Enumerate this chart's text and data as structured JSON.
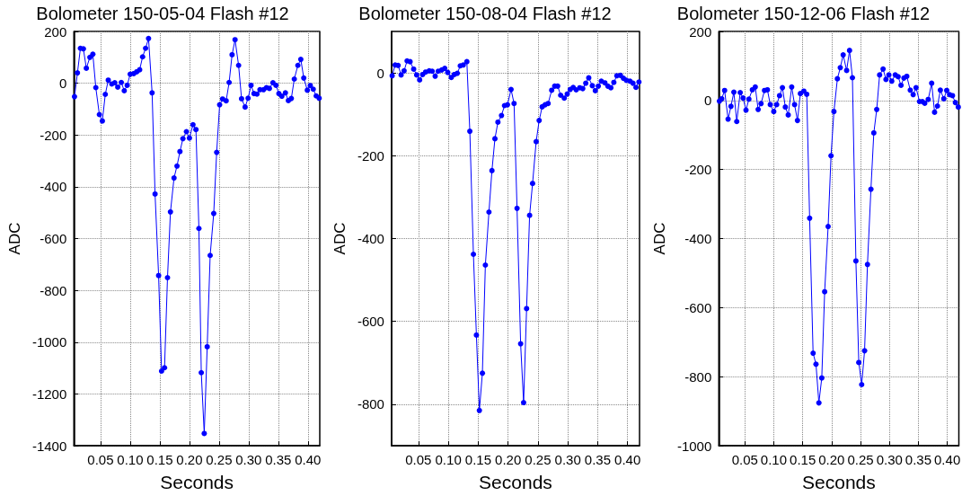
{
  "chart_data": [
    {
      "type": "line",
      "title": "Bolometer 150-05-04 Flash #12",
      "xlabel": "Seconds",
      "ylabel": "ADC",
      "color": "#0000ff",
      "marker": "circle",
      "line_style": "solid",
      "grid": true,
      "x": [
        0.006,
        0.011,
        0.016,
        0.021,
        0.026,
        0.032,
        0.037,
        0.042,
        0.048,
        0.053,
        0.058,
        0.063,
        0.069,
        0.074,
        0.079,
        0.085,
        0.09,
        0.095,
        0.1,
        0.106,
        0.111,
        0.116,
        0.121,
        0.126,
        0.131,
        0.137,
        0.142,
        0.148,
        0.153,
        0.158,
        0.163,
        0.168,
        0.174,
        0.179,
        0.184,
        0.189,
        0.195,
        0.2,
        0.206,
        0.211,
        0.216,
        0.22,
        0.225,
        0.23,
        0.235,
        0.241,
        0.246,
        0.251,
        0.256,
        0.262,
        0.267,
        0.272,
        0.277,
        0.283,
        0.288,
        0.294,
        0.299,
        0.304,
        0.309,
        0.314,
        0.319,
        0.325,
        0.33,
        0.335,
        0.341,
        0.346,
        0.351,
        0.356,
        0.362,
        0.367,
        0.372,
        0.377,
        0.383,
        0.388,
        0.393,
        0.399,
        0.404,
        0.409,
        0.414,
        0.419
      ],
      "values": [
        -52,
        40,
        135,
        133,
        58,
        100,
        112,
        -17,
        -121,
        -146,
        -43,
        12,
        -3,
        2,
        -15,
        3,
        -29,
        -8,
        35,
        37,
        44,
        52,
        102,
        135,
        173,
        -37,
        -428,
        -743,
        -1112,
        -1099,
        -751,
        -497,
        -366,
        -320,
        -264,
        -214,
        -187,
        -212,
        -160,
        -179,
        -561,
        -1118,
        -1353,
        -1018,
        -665,
        -503,
        -267,
        -83,
        -61,
        -68,
        3,
        110,
        168,
        69,
        -60,
        -92,
        -58,
        -8,
        -40,
        -42,
        -25,
        -25,
        -17,
        -20,
        2,
        -8,
        -40,
        -50,
        -37,
        -67,
        -59,
        16,
        69,
        92,
        20,
        -27,
        -9,
        -23,
        -49,
        -58
      ],
      "xlim": [
        0.005,
        0.42
      ],
      "xticks": [
        {
          "value": 0.05,
          "label": "0.05"
        },
        {
          "value": 0.1,
          "label": "0.10"
        },
        {
          "value": 0.15,
          "label": "0.15"
        },
        {
          "value": 0.2,
          "label": "0.20"
        },
        {
          "value": 0.25,
          "label": "0.25"
        },
        {
          "value": 0.3,
          "label": "0.30"
        },
        {
          "value": 0.35,
          "label": "0.35"
        },
        {
          "value": 0.4,
          "label": "0.40"
        }
      ],
      "ylim": [
        -1400,
        200
      ],
      "yticks": [
        -1400,
        -1200,
        -1000,
        -800,
        -600,
        -400,
        -200,
        0,
        200
      ]
    },
    {
      "type": "line",
      "title": "Bolometer 150-08-04 Flash #12",
      "xlabel": "Seconds",
      "ylabel": "ADC",
      "color": "#0000ff",
      "marker": "circle",
      "line_style": "solid",
      "grid": true,
      "x": [
        0.006,
        0.011,
        0.016,
        0.021,
        0.026,
        0.031,
        0.036,
        0.042,
        0.047,
        0.052,
        0.057,
        0.062,
        0.068,
        0.073,
        0.078,
        0.083,
        0.089,
        0.094,
        0.099,
        0.105,
        0.11,
        0.115,
        0.12,
        0.125,
        0.131,
        0.136,
        0.142,
        0.147,
        0.152,
        0.157,
        0.162,
        0.168,
        0.173,
        0.178,
        0.183,
        0.189,
        0.194,
        0.199,
        0.205,
        0.21,
        0.215,
        0.221,
        0.226,
        0.231,
        0.236,
        0.241,
        0.247,
        0.252,
        0.257,
        0.262,
        0.267,
        0.273,
        0.278,
        0.283,
        0.288,
        0.294,
        0.299,
        0.304,
        0.309,
        0.314,
        0.32,
        0.325,
        0.33,
        0.335,
        0.341,
        0.346,
        0.351,
        0.356,
        0.362,
        0.367,
        0.372,
        0.377,
        0.382,
        0.388,
        0.393,
        0.398,
        0.404,
        0.409,
        0.414,
        0.419
      ],
      "values": [
        -7,
        19,
        18,
        -5,
        5,
        29,
        27,
        9,
        -5,
        -17,
        -4,
        2,
        5,
        4,
        -8,
        4,
        7,
        11,
        1,
        -11,
        -4,
        -1,
        17,
        19,
        27,
        -141,
        -438,
        -633,
        -815,
        -725,
        -464,
        -336,
        -236,
        -159,
        -119,
        -103,
        -79,
        -77,
        -40,
        -74,
        -327,
        -654,
        -796,
        -569,
        -344,
        -267,
        -166,
        -115,
        -82,
        -77,
        -74,
        -42,
        -32,
        -32,
        -54,
        -61,
        -51,
        -40,
        -35,
        -41,
        -36,
        -38,
        -25,
        -12,
        -31,
        -43,
        -32,
        -20,
        -24,
        -32,
        -36,
        -23,
        -7,
        -6,
        -13,
        -18,
        -20,
        -25,
        -35,
        -22
      ],
      "xlim": [
        0.005,
        0.42
      ],
      "xticks": [
        {
          "value": 0.05,
          "label": "0.05"
        },
        {
          "value": 0.1,
          "label": "0.10"
        },
        {
          "value": 0.15,
          "label": "0.15"
        },
        {
          "value": 0.2,
          "label": "0.20"
        },
        {
          "value": 0.25,
          "label": "0.25"
        },
        {
          "value": 0.3,
          "label": "0.30"
        },
        {
          "value": 0.35,
          "label": "0.35"
        },
        {
          "value": 0.4,
          "label": "0.40"
        }
      ],
      "ylim": [
        -900,
        100
      ],
      "yticks": [
        -800,
        -600,
        -400,
        -200,
        0
      ]
    },
    {
      "type": "line",
      "title": "Bolometer 150-12-06 Flash #12",
      "xlabel": "Seconds",
      "ylabel": "ADC",
      "color": "#0000ff",
      "marker": "circle",
      "line_style": "solid",
      "grid": true,
      "x": [
        0.006,
        0.01,
        0.015,
        0.021,
        0.026,
        0.031,
        0.036,
        0.042,
        0.047,
        0.052,
        0.057,
        0.063,
        0.068,
        0.073,
        0.078,
        0.084,
        0.089,
        0.094,
        0.1,
        0.105,
        0.11,
        0.115,
        0.12,
        0.125,
        0.131,
        0.136,
        0.141,
        0.146,
        0.152,
        0.157,
        0.162,
        0.168,
        0.173,
        0.178,
        0.183,
        0.188,
        0.194,
        0.199,
        0.204,
        0.21,
        0.215,
        0.22,
        0.226,
        0.231,
        0.236,
        0.242,
        0.247,
        0.252,
        0.257,
        0.262,
        0.268,
        0.273,
        0.278,
        0.283,
        0.289,
        0.294,
        0.299,
        0.304,
        0.31,
        0.315,
        0.32,
        0.325,
        0.33,
        0.336,
        0.341,
        0.346,
        0.352,
        0.357,
        0.361,
        0.367,
        0.373,
        0.378,
        0.383,
        0.388,
        0.394,
        0.399,
        0.404,
        0.409,
        0.414,
        0.419
      ],
      "values": [
        -2,
        5,
        29,
        -54,
        -17,
        24,
        -61,
        23,
        7,
        -28,
        4,
        31,
        39,
        -26,
        -9,
        29,
        31,
        -12,
        -32,
        -12,
        14,
        37,
        -19,
        -42,
        39,
        -12,
        -58,
        20,
        27,
        18,
        -341,
        -732,
        -764,
        -876,
        -804,
        -554,
        -365,
        -160,
        -32,
        63,
        95,
        132,
        87,
        145,
        66,
        -465,
        -759,
        -823,
        -725,
        -475,
        -257,
        -94,
        -26,
        74,
        91,
        61,
        74,
        56,
        74,
        69,
        44,
        65,
        70,
        30,
        17,
        37,
        -3,
        -3,
        -8,
        3,
        50,
        -34,
        -16,
        30,
        5,
        29,
        17,
        14,
        -6,
        -19
      ],
      "xlim": [
        0.005,
        0.42
      ],
      "xticks": [
        {
          "value": 0.05,
          "label": "0.05"
        },
        {
          "value": 0.1,
          "label": "0.10"
        },
        {
          "value": 0.15,
          "label": "0.15"
        },
        {
          "value": 0.2,
          "label": "0.20"
        },
        {
          "value": 0.25,
          "label": "0.25"
        },
        {
          "value": 0.3,
          "label": "0.30"
        },
        {
          "value": 0.35,
          "label": "0.35"
        },
        {
          "value": 0.4,
          "label": "0.40"
        }
      ],
      "ylim": [
        -1000,
        200
      ],
      "yticks": [
        -1000,
        -800,
        -600,
        -400,
        -200,
        0,
        200
      ]
    }
  ]
}
